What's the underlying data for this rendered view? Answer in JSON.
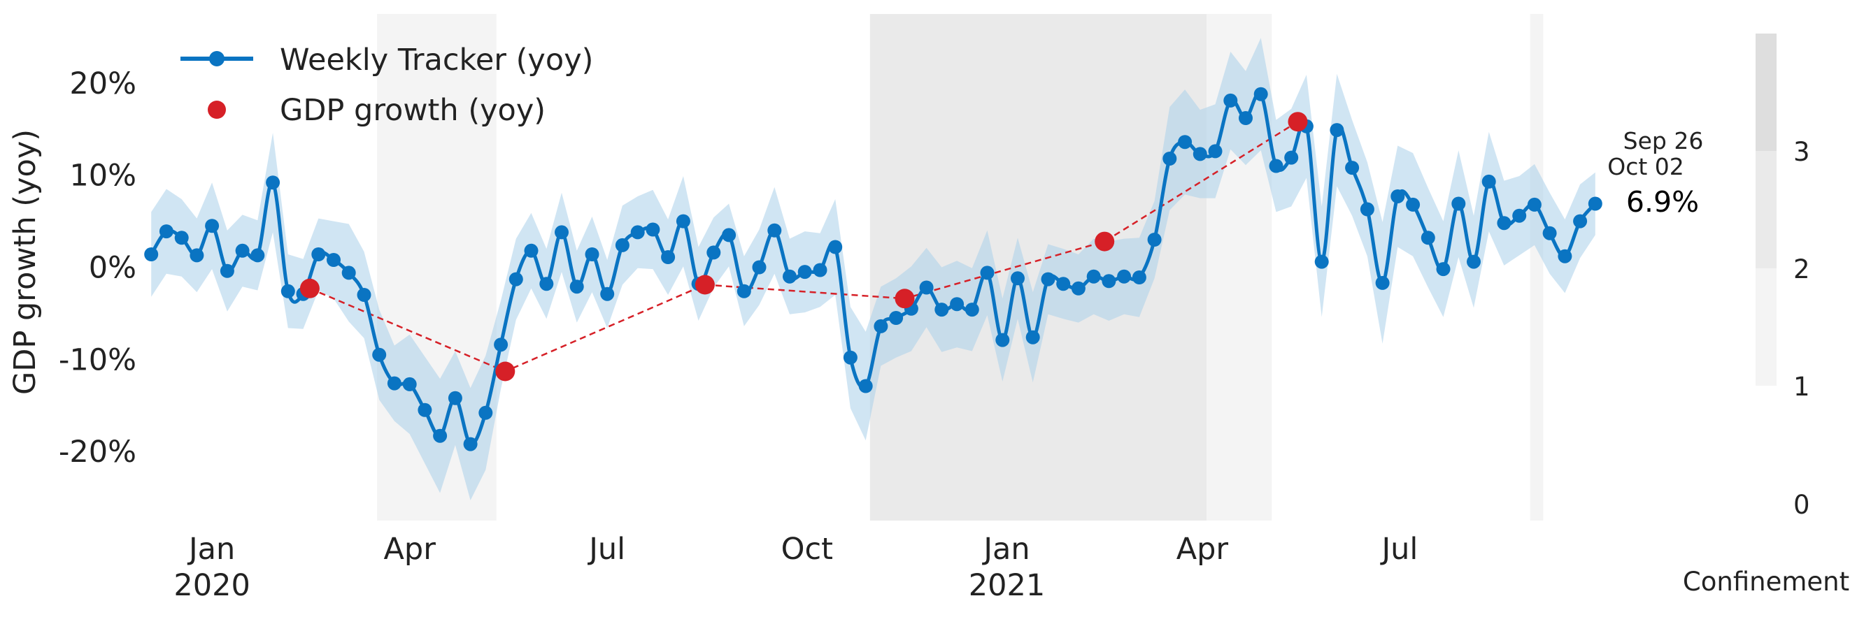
{
  "chart_data": {
    "type": "line",
    "ylabel": "GDP growth (yoy)",
    "xlabel": "",
    "ylim": [
      -27.5,
      27.5
    ],
    "xlim": [
      "2019-12-02",
      "2021-10-10"
    ],
    "y_ticks": [
      {
        "value": 20,
        "label": "20%"
      },
      {
        "value": 10,
        "label": "10%"
      },
      {
        "value": 0,
        "label": "0%"
      },
      {
        "value": -10,
        "label": "-10%"
      },
      {
        "value": -20,
        "label": "-20%"
      }
    ],
    "x_ticks": [
      {
        "date": "2020-01-01",
        "label": "Jan",
        "sublabel": "2020"
      },
      {
        "date": "2020-04-01",
        "label": "Apr",
        "sublabel": ""
      },
      {
        "date": "2020-07-01",
        "label": "Jul",
        "sublabel": ""
      },
      {
        "date": "2020-10-01",
        "label": "Oct",
        "sublabel": ""
      },
      {
        "date": "2021-01-01",
        "label": "Jan",
        "sublabel": "2021"
      },
      {
        "date": "2021-04-01",
        "label": "Apr",
        "sublabel": ""
      },
      {
        "date": "2021-07-01",
        "label": "Jul",
        "sublabel": ""
      }
    ],
    "legend": {
      "position": "top-left",
      "entries": [
        {
          "label": "Weekly Tracker (yoy)",
          "marker": "line-dot",
          "color": "#0a74c2"
        },
        {
          "label": "GDP growth (yoy)",
          "marker": "dot",
          "color": "#d62027"
        }
      ]
    },
    "colors": {
      "tracker": "#0a74c2",
      "band": "#a9d0ea",
      "gdp": "#d62027",
      "confinement_1": "#f4f4f4",
      "confinement_2": "#eaeaea",
      "confinement_3": "#dedede"
    },
    "confinement_periods": [
      {
        "start": "2020-03-17",
        "end": "2020-05-11",
        "level": 1
      },
      {
        "start": "2020-10-30",
        "end": "2021-04-03",
        "level": 2
      },
      {
        "start": "2021-04-03",
        "end": "2021-05-03",
        "level": 1
      },
      {
        "start": "2021-08-30",
        "end": "2021-09-05",
        "level": 1
      }
    ],
    "colorbar": {
      "title": "Confinement",
      "ticks": [
        "0",
        "1",
        "2",
        "3"
      ]
    },
    "annotation": {
      "week_start": "Sep 26",
      "week_end": "Oct 02",
      "value_label": "6.9%"
    },
    "series": [
      {
        "name": "Weekly Tracker (yoy)",
        "dates": [
          "2019-12-04",
          "2019-12-11",
          "2019-12-18",
          "2019-12-25",
          "2020-01-01",
          "2020-01-08",
          "2020-01-15",
          "2020-01-22",
          "2020-01-29",
          "2020-02-05",
          "2020-02-12",
          "2020-02-19",
          "2020-02-26",
          "2020-03-04",
          "2020-03-11",
          "2020-03-18",
          "2020-03-25",
          "2020-04-01",
          "2020-04-08",
          "2020-04-15",
          "2020-04-22",
          "2020-04-29",
          "2020-05-06",
          "2020-05-13",
          "2020-05-20",
          "2020-05-27",
          "2020-06-03",
          "2020-06-10",
          "2020-06-17",
          "2020-06-24",
          "2020-07-01",
          "2020-07-08",
          "2020-07-15",
          "2020-07-22",
          "2020-07-29",
          "2020-08-05",
          "2020-08-12",
          "2020-08-19",
          "2020-08-26",
          "2020-09-02",
          "2020-09-09",
          "2020-09-16",
          "2020-09-23",
          "2020-09-30",
          "2020-10-07",
          "2020-10-14",
          "2020-10-21",
          "2020-10-28",
          "2020-11-04",
          "2020-11-11",
          "2020-11-18",
          "2020-11-25",
          "2020-12-02",
          "2020-12-09",
          "2020-12-16",
          "2020-12-23",
          "2020-12-30",
          "2021-01-06",
          "2021-01-13",
          "2021-01-20",
          "2021-01-27",
          "2021-02-03",
          "2021-02-10",
          "2021-02-17",
          "2021-02-24",
          "2021-03-03",
          "2021-03-10",
          "2021-03-17",
          "2021-03-24",
          "2021-03-31",
          "2021-04-07",
          "2021-04-14",
          "2021-04-21",
          "2021-04-28",
          "2021-05-05",
          "2021-05-12",
          "2021-05-19",
          "2021-05-26",
          "2021-06-02",
          "2021-06-09",
          "2021-06-16",
          "2021-06-23",
          "2021-06-30",
          "2021-07-07",
          "2021-07-14",
          "2021-07-21",
          "2021-07-28",
          "2021-08-04",
          "2021-08-11",
          "2021-08-18",
          "2021-08-25",
          "2021-09-01",
          "2021-09-08",
          "2021-09-15",
          "2021-09-22",
          "2021-09-29"
        ],
        "values": [
          1.4,
          3.9,
          3.2,
          1.3,
          4.5,
          -0.4,
          1.8,
          1.3,
          9.2,
          -2.6,
          -2.9,
          1.4,
          0.8,
          -0.6,
          -3.0,
          -9.5,
          -12.6,
          -12.7,
          -15.5,
          -18.3,
          -14.2,
          -19.2,
          -15.8,
          -8.4,
          -1.3,
          1.8,
          -1.8,
          3.8,
          -2.1,
          1.4,
          -2.9,
          2.4,
          3.8,
          4.1,
          1.1,
          5.0,
          -1.8,
          1.6,
          3.5,
          -2.6,
          0.0,
          4.0,
          -1.0,
          -0.5,
          -0.3,
          2.2,
          -9.8,
          -12.9,
          -6.4,
          -5.5,
          -4.5,
          -2.2,
          -4.6,
          -4.0,
          -4.6,
          -0.6,
          -7.9,
          -1.2,
          -7.6,
          -1.3,
          -1.8,
          -2.3,
          -1.0,
          -1.5,
          -1.0,
          -1.1,
          3.0,
          11.8,
          13.6,
          12.3,
          12.6,
          18.1,
          16.2,
          18.8,
          11.0,
          11.9,
          15.3,
          0.6,
          14.9,
          10.8,
          6.3,
          -1.7,
          7.7,
          6.8,
          3.2,
          -0.2,
          6.9,
          0.6,
          9.3,
          4.8,
          5.6,
          6.8,
          3.7,
          1.2,
          5.0,
          6.9
        ],
        "band_width": [
          4.6,
          4.6,
          4.2,
          4.0,
          4.7,
          4.4,
          3.9,
          3.8,
          5.4,
          4.0,
          3.8,
          3.9,
          4.2,
          5.3,
          4.7,
          4.9,
          4.1,
          5.4,
          5.8,
          6.2,
          5.1,
          6.1,
          6.2,
          4.8,
          4.4,
          4.1,
          3.8,
          4.3,
          3.9,
          4.1,
          3.7,
          4.3,
          3.9,
          4.3,
          4.1,
          4.9,
          4.0,
          3.8,
          3.4,
          3.8,
          4.1,
          4.7,
          4.1,
          4.4,
          4.0,
          5.2,
          5.5,
          5.9,
          4.3,
          4.3,
          4.6,
          4.3,
          4.6,
          4.7,
          4.5,
          4.6,
          4.5,
          4.4,
          4.9,
          3.8,
          3.8,
          3.7,
          4.1,
          4.3,
          4.1,
          4.3,
          4.2,
          5.6,
          5.7,
          4.8,
          5.1,
          5.3,
          5.1,
          6.1,
          5.0,
          5.3,
          5.6,
          6.0,
          6.1,
          5.2,
          5.1,
          6.6,
          5.5,
          5.6,
          5.4,
          5.2,
          5.8,
          5.0,
          5.4,
          4.6,
          4.3,
          4.4,
          4.4,
          4.0,
          4.0,
          3.4
        ]
      },
      {
        "name": "GDP growth (yoy)",
        "dates": [
          "2020-02-15",
          "2020-05-15",
          "2020-08-15",
          "2020-11-15",
          "2021-02-15",
          "2021-05-15"
        ],
        "values": [
          -2.3,
          -11.3,
          -1.9,
          -3.4,
          2.8,
          15.8
        ]
      }
    ]
  }
}
